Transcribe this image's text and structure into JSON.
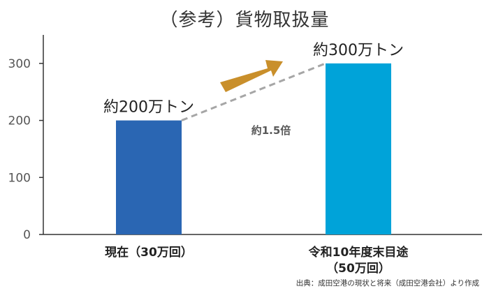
{
  "chart_data": {
    "type": "bar",
    "title": "（参考）貨物取扱量",
    "xlabel": "",
    "ylabel": "",
    "categories": [
      "現在（30万回）",
      "令和10年度末目途\n（50万回）"
    ],
    "values": [
      200,
      300
    ],
    "value_labels": [
      "約200万トン",
      "約300万トン"
    ],
    "yticks": [
      0,
      100,
      200,
      300
    ],
    "ylim": [
      0,
      350
    ],
    "grid": false,
    "annotation": "約1.5倍",
    "colors": {
      "bars": [
        "#2a66b3",
        "#00a3d9"
      ],
      "arrow": "#c98f2b",
      "dash": "#a6a6a6",
      "axis": "#333333"
    }
  },
  "source": "出典：成田空港の現状と将来（成田空港会社）より作成"
}
